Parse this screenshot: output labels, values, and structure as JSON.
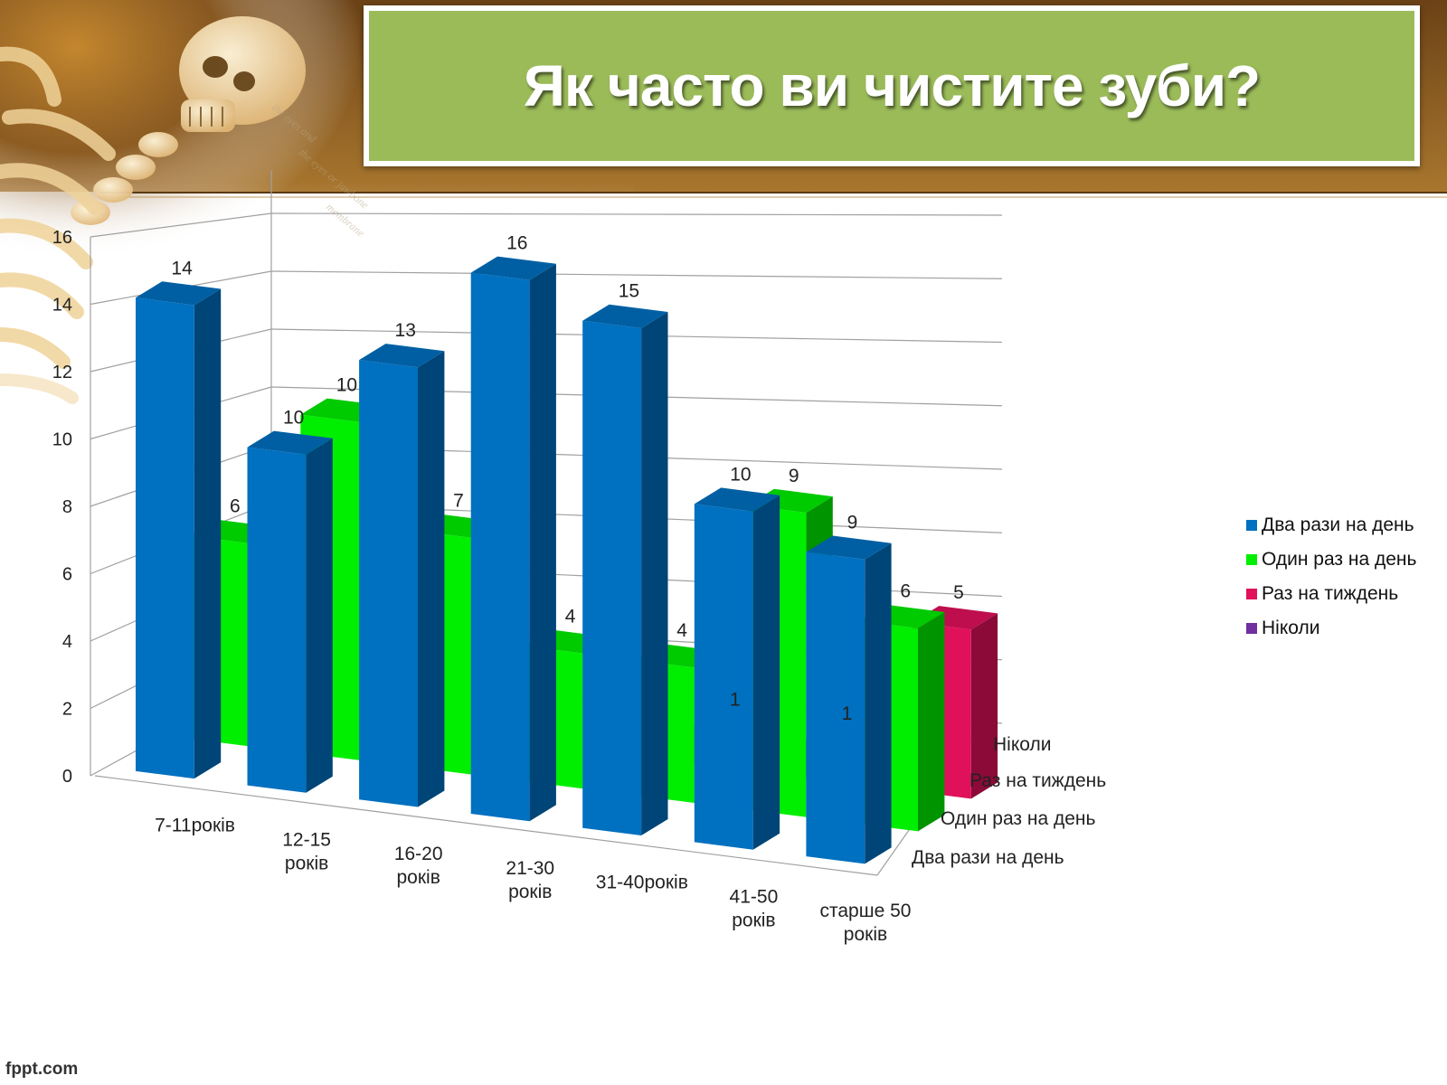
{
  "slide": {
    "title": "Як часто ви чистите зуби?",
    "footer": "fppt.com"
  },
  "colors": {
    "title_bg": "#9bbb59",
    "series_blue": "#0070c0",
    "series_green": "#00ee00",
    "series_pink": "#e0105a",
    "series_purple": "#7030a0"
  },
  "chart_data": {
    "type": "bar",
    "style": "3d-clustered",
    "categories": [
      "7-11років",
      "12-15 років",
      "16-20 років",
      "21-30 років",
      "31-40років",
      "41-50 років",
      "старше 50 років"
    ],
    "category_lines": [
      [
        "7-11років"
      ],
      [
        "12-15",
        "років"
      ],
      [
        "16-20",
        "років"
      ],
      [
        "21-30",
        "років"
      ],
      [
        "31-40років"
      ],
      [
        "41-50",
        "років"
      ],
      [
        "старше 50",
        "років"
      ]
    ],
    "series": [
      {
        "name": "Два рази на день",
        "values": [
          14,
          10,
          13,
          16,
          15,
          10,
          9
        ]
      },
      {
        "name": "Один раз на день",
        "values": [
          6,
          10,
          7,
          4,
          4,
          9,
          6
        ]
      },
      {
        "name": "Раз на тиждень",
        "values": [
          null,
          null,
          null,
          null,
          1,
          1,
          5
        ]
      },
      {
        "name": "Ніколи",
        "values": [
          null,
          null,
          null,
          null,
          null,
          null,
          null
        ]
      }
    ],
    "depth_labels": [
      "Ніколи",
      "Раз на тиждень",
      "Один раз на день",
      "Два рази на день"
    ],
    "yticks": [
      0,
      2,
      4,
      6,
      8,
      10,
      12,
      14,
      16
    ],
    "ylim": [
      0,
      16
    ],
    "grid": true,
    "legend": "right"
  }
}
